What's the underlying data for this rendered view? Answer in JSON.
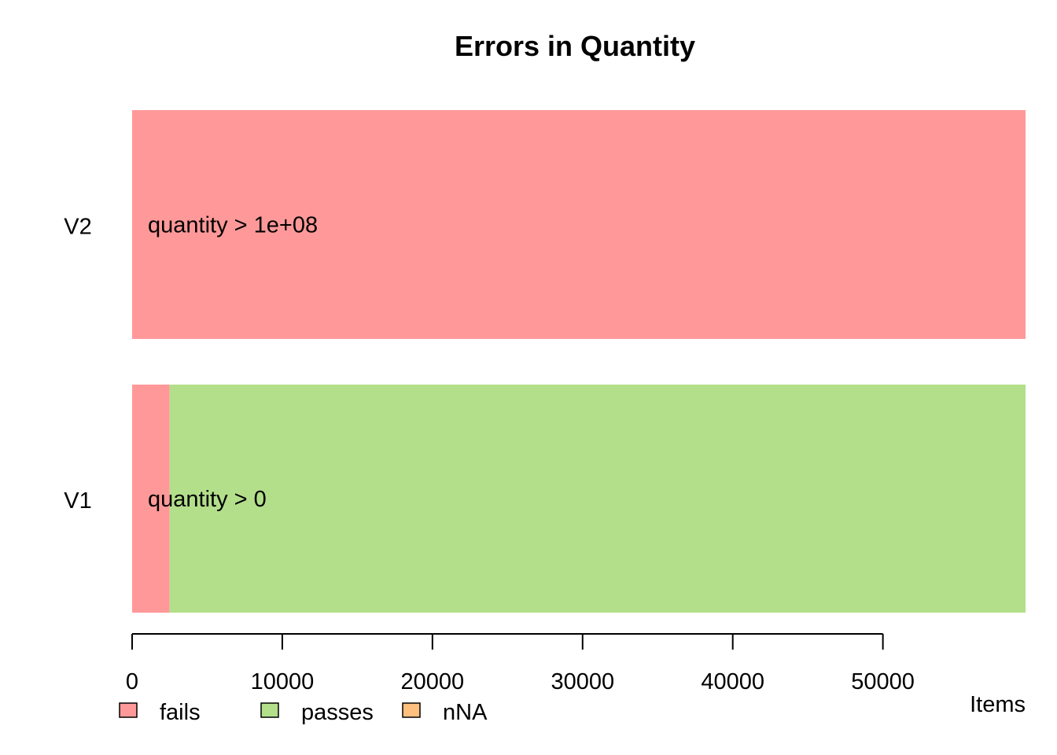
{
  "chart_data": {
    "type": "bar",
    "orientation": "horizontal",
    "stacked": true,
    "title": "Errors in Quantity",
    "xlabel": "Items",
    "ylabel": "",
    "xlim": [
      0,
      59500
    ],
    "x_ticks": [
      0,
      10000,
      20000,
      30000,
      40000,
      50000
    ],
    "x_tick_labels": [
      "0",
      "10000",
      "20000",
      "30000",
      "40000",
      "50000"
    ],
    "categories": [
      "V1",
      "V2"
    ],
    "bar_labels": [
      "quantity > 0",
      "quantity > 1e+08"
    ],
    "series": [
      {
        "name": "fails",
        "color": "#ff9999",
        "values": [
          2500,
          59500
        ]
      },
      {
        "name": "passes",
        "color": "#b3df8a",
        "values": [
          57000,
          0
        ]
      },
      {
        "name": "nNA",
        "color": "#ffbf7f",
        "values": [
          0,
          0
        ]
      }
    ],
    "grid": false,
    "legend": {
      "position": "bottom-left"
    }
  }
}
